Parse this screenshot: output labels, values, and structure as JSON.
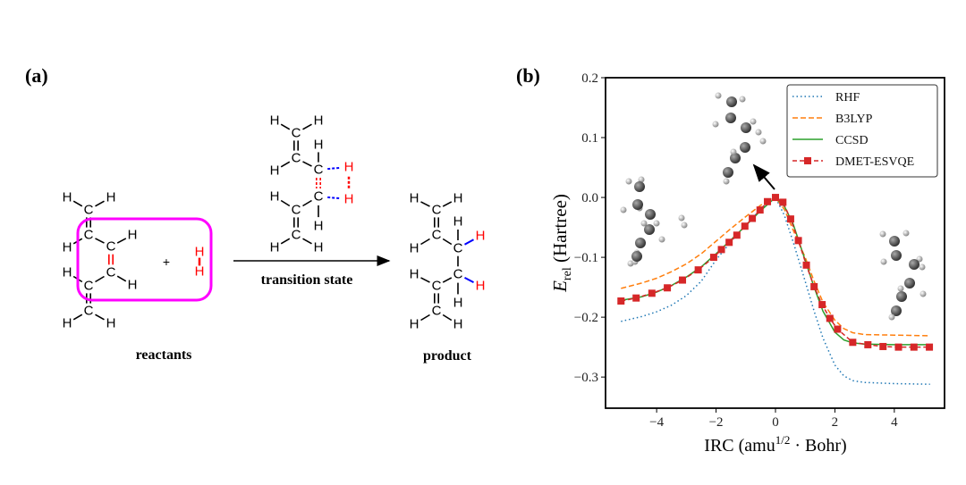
{
  "panel_a": {
    "label": "(a)",
    "reactants_label": "reactants",
    "product_label": "product",
    "arrow_label": "transition state",
    "plus": "+",
    "atoms": {
      "carbon": "C",
      "hydrogen": "H"
    },
    "colors": {
      "highlight_box": "#ff00ff",
      "reacting_h": "#ff0000",
      "new_bond": "#0000ff"
    }
  },
  "panel_b": {
    "label": "(b)"
  },
  "chart_data": {
    "type": "line",
    "xlabel": "IRC (amu",
    "xlabel_sup": "1/2",
    "xlabel_tail": " · Bohr)",
    "ylabel_main": "E",
    "ylabel_sub": "rel",
    "ylabel_tail": " (Hartree)",
    "xlim": [
      -5.72,
      5.69
    ],
    "ylim": [
      -0.352,
      0.2
    ],
    "xticks": [
      -4,
      -2,
      0,
      2,
      4
    ],
    "xtick_labels": [
      "−4",
      "−2",
      "0",
      "2",
      "4"
    ],
    "yticks": [
      0.2,
      0.1,
      0.0,
      -0.1,
      -0.2,
      -0.3
    ],
    "ytick_labels": [
      "0.2",
      "0.1",
      "0.0",
      "−0.1",
      "−0.2",
      "−0.3"
    ],
    "grid": false,
    "legend": "top-right",
    "series": [
      {
        "name": "RHF",
        "color": "#1f77b4",
        "style": "dotted",
        "x": [
          -5.2,
          -4.5,
          -4,
          -3.5,
          -3,
          -2.5,
          -2,
          -1.5,
          -1,
          -0.5,
          0,
          0.3,
          0.6,
          1,
          1.3,
          1.6,
          2,
          2.3,
          2.6,
          3,
          4,
          5.2
        ],
        "y": [
          -0.207,
          -0.199,
          -0.191,
          -0.18,
          -0.164,
          -0.14,
          -0.104,
          -0.074,
          -0.046,
          -0.02,
          0,
          -0.03,
          -0.075,
          -0.14,
          -0.19,
          -0.235,
          -0.28,
          -0.298,
          -0.306,
          -0.309,
          -0.311,
          -0.312
        ]
      },
      {
        "name": "B3LYP",
        "color": "#ff7f0e",
        "style": "dashed",
        "x": [
          -5.2,
          -4.5,
          -4,
          -3.5,
          -3,
          -2.5,
          -2,
          -1.5,
          -1,
          -0.5,
          0,
          0.3,
          0.6,
          1,
          1.3,
          1.6,
          2,
          2.3,
          2.6,
          3,
          4,
          5.2
        ],
        "y": [
          -0.152,
          -0.143,
          -0.135,
          -0.124,
          -0.111,
          -0.094,
          -0.073,
          -0.052,
          -0.032,
          -0.013,
          0,
          -0.02,
          -0.055,
          -0.1,
          -0.14,
          -0.175,
          -0.205,
          -0.219,
          -0.226,
          -0.229,
          -0.23,
          -0.231
        ]
      },
      {
        "name": "CCSD",
        "color": "#2ca02c",
        "style": "solid",
        "x": [
          -5.2,
          -4.5,
          -4,
          -3.5,
          -3,
          -2.5,
          -2,
          -1.5,
          -1,
          -0.5,
          0,
          0.3,
          0.6,
          1,
          1.3,
          1.6,
          2,
          2.3,
          2.6,
          3,
          4,
          5.2
        ],
        "y": [
          -0.172,
          -0.166,
          -0.158,
          -0.147,
          -0.133,
          -0.116,
          -0.094,
          -0.071,
          -0.047,
          -0.022,
          0,
          -0.015,
          -0.045,
          -0.105,
          -0.15,
          -0.19,
          -0.225,
          -0.238,
          -0.243,
          -0.245,
          -0.246,
          -0.246
        ]
      },
      {
        "name": "DMET-ESVQE",
        "color": "#d62728",
        "style": "dashed-square",
        "x": [
          -5.2,
          -4.69,
          -4.16,
          -3.64,
          -3.13,
          -2.6,
          -2.08,
          -1.82,
          -1.56,
          -1.3,
          -1.03,
          -0.78,
          -0.52,
          -0.27,
          0,
          0.25,
          0.51,
          0.77,
          1.04,
          1.3,
          1.57,
          1.83,
          2.09,
          2.6,
          3.11,
          3.62,
          4.14,
          4.66,
          5.18
        ],
        "y": [
          -0.173,
          -0.168,
          -0.16,
          -0.151,
          -0.138,
          -0.121,
          -0.1,
          -0.087,
          -0.075,
          -0.063,
          -0.048,
          -0.035,
          -0.021,
          -0.007,
          0,
          -0.008,
          -0.036,
          -0.072,
          -0.113,
          -0.149,
          -0.179,
          -0.202,
          -0.22,
          -0.242,
          -0.246,
          -0.249,
          -0.25,
          -0.25,
          -0.25
        ]
      }
    ]
  }
}
